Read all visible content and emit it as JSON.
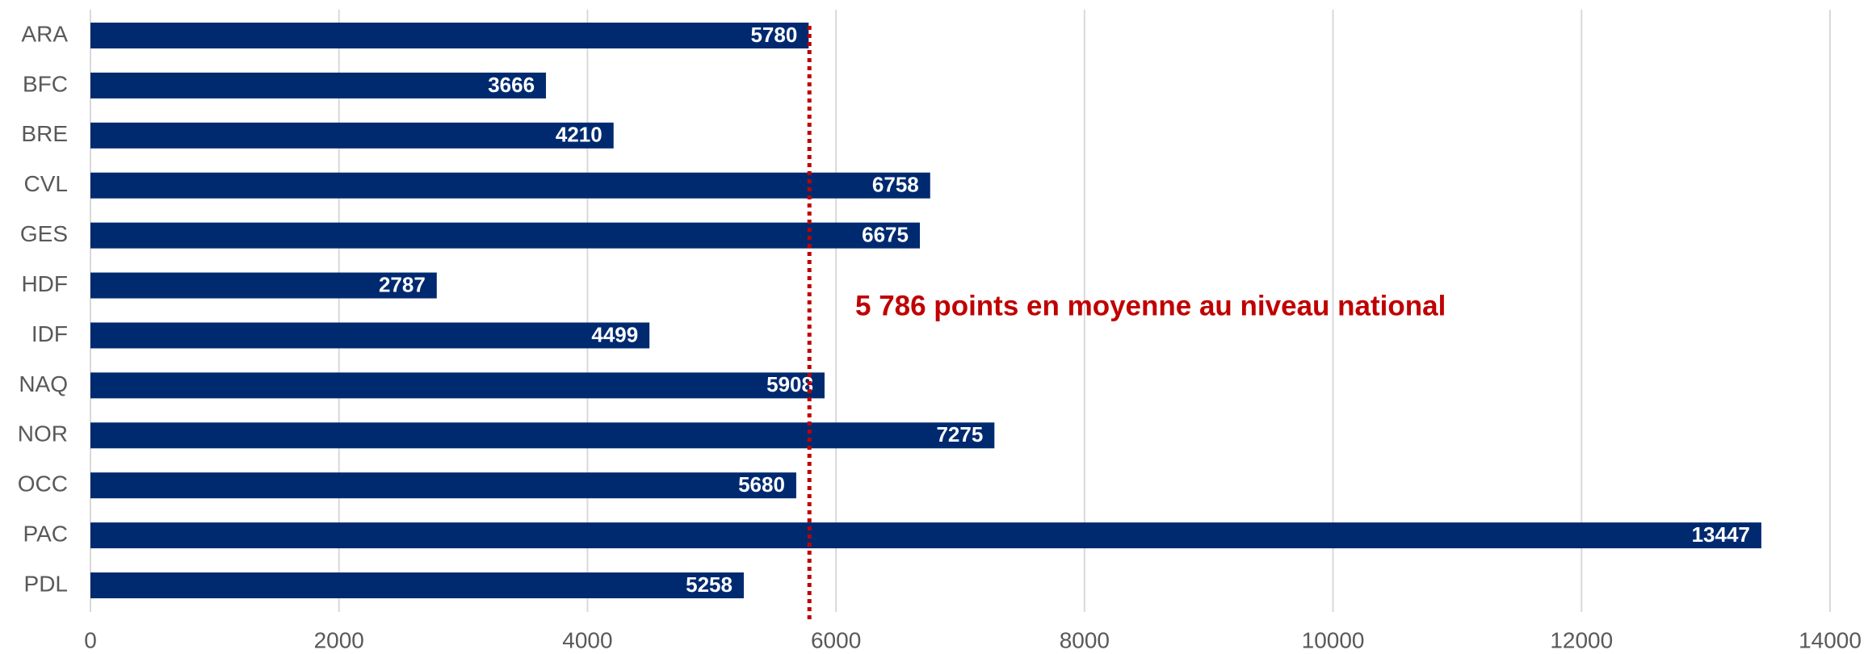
{
  "chart_data": {
    "type": "bar",
    "orientation": "horizontal",
    "categories": [
      "ARA",
      "BFC",
      "BRE",
      "CVL",
      "GES",
      "HDF",
      "IDF",
      "NAQ",
      "NOR",
      "OCC",
      "PAC",
      "PDL"
    ],
    "values": [
      5780,
      3666,
      4210,
      6758,
      6675,
      2787,
      4499,
      5908,
      7275,
      5680,
      13447,
      5258
    ],
    "color": "#002a70",
    "xlim": [
      0,
      14000
    ],
    "xticks": [
      0,
      2000,
      4000,
      6000,
      8000,
      10000,
      12000,
      14000
    ],
    "grid": true,
    "reference_line": {
      "value": 5786,
      "color": "#c00000"
    },
    "annotation": "5 786 points en moyenne au niveau national"
  }
}
